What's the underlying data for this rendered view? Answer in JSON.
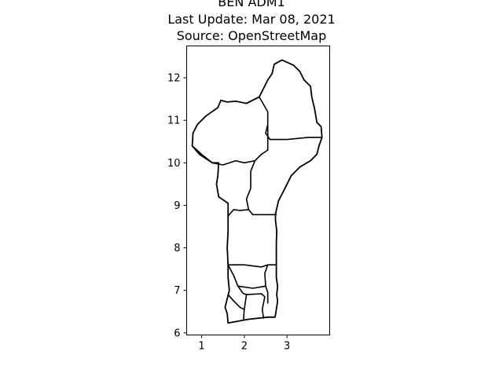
{
  "figure": {
    "title_lines": [
      "BEN ADM1",
      "Last Update: Mar 08, 2021",
      "Source: OpenStreetMap"
    ]
  },
  "chart_data": {
    "type": "map",
    "country": "BEN",
    "level": "ADM1",
    "xlim": [
      0.65,
      4.0
    ],
    "ylim": [
      5.95,
      12.75
    ],
    "xticks": [
      1,
      2,
      3
    ],
    "yticks": [
      6,
      7,
      8,
      9,
      10,
      11,
      12
    ],
    "grid": false,
    "outline": [
      [
        1.62,
        6.23
      ],
      [
        2.1,
        6.32
      ],
      [
        2.55,
        6.37
      ],
      [
        2.72,
        6.37
      ],
      [
        2.75,
        6.55
      ],
      [
        2.78,
        6.75
      ],
      [
        2.76,
        6.9
      ],
      [
        2.78,
        7.1
      ],
      [
        2.75,
        7.3
      ],
      [
        2.75,
        7.6
      ],
      [
        2.75,
        7.9
      ],
      [
        2.75,
        8.1
      ],
      [
        2.76,
        8.4
      ],
      [
        2.73,
        8.65
      ],
      [
        2.73,
        8.8
      ],
      [
        2.8,
        9.1
      ],
      [
        2.95,
        9.4
      ],
      [
        3.1,
        9.7
      ],
      [
        3.3,
        9.9
      ],
      [
        3.55,
        10.05
      ],
      [
        3.7,
        10.2
      ],
      [
        3.75,
        10.4
      ],
      [
        3.82,
        10.6
      ],
      [
        3.8,
        10.85
      ],
      [
        3.7,
        10.95
      ],
      [
        3.65,
        11.25
      ],
      [
        3.58,
        11.55
      ],
      [
        3.55,
        11.8
      ],
      [
        3.4,
        11.95
      ],
      [
        3.3,
        12.15
      ],
      [
        3.15,
        12.3
      ],
      [
        2.88,
        12.42
      ],
      [
        2.7,
        12.32
      ],
      [
        2.65,
        12.1
      ],
      [
        2.55,
        11.95
      ],
      [
        2.35,
        11.55
      ],
      [
        2.05,
        11.4
      ],
      [
        1.8,
        11.45
      ],
      [
        1.6,
        11.43
      ],
      [
        1.45,
        11.47
      ],
      [
        1.38,
        11.3
      ],
      [
        1.1,
        11.1
      ],
      [
        0.9,
        10.9
      ],
      [
        0.8,
        10.7
      ],
      [
        0.78,
        10.4
      ],
      [
        0.95,
        10.2
      ],
      [
        1.25,
        10.0
      ],
      [
        1.4,
        10.0
      ],
      [
        1.38,
        9.7
      ],
      [
        1.35,
        9.5
      ],
      [
        1.4,
        9.2
      ],
      [
        1.62,
        9.05
      ],
      [
        1.62,
        8.75
      ],
      [
        1.62,
        8.4
      ],
      [
        1.6,
        8.0
      ],
      [
        1.62,
        7.6
      ],
      [
        1.62,
        7.3
      ],
      [
        1.65,
        7.0
      ],
      [
        1.6,
        6.8
      ],
      [
        1.55,
        6.6
      ],
      [
        1.6,
        6.45
      ],
      [
        1.62,
        6.23
      ]
    ],
    "borders": [
      [
        [
          2.35,
          11.55
        ],
        [
          2.05,
          11.4
        ]
      ],
      [
        [
          2.35,
          11.55
        ],
        [
          2.55,
          11.2
        ],
        [
          2.55,
          10.9
        ],
        [
          2.5,
          10.7
        ],
        [
          2.6,
          10.55
        ],
        [
          3.0,
          10.55
        ],
        [
          3.5,
          10.6
        ],
        [
          3.82,
          10.6
        ]
      ],
      [
        [
          2.55,
          10.9
        ],
        [
          2.55,
          10.5
        ],
        [
          2.55,
          10.3
        ],
        [
          2.4,
          10.2
        ]
      ],
      [
        [
          0.78,
          10.4
        ],
        [
          1.0,
          10.2
        ],
        [
          1.25,
          10.0
        ]
      ],
      [
        [
          1.25,
          10.0
        ],
        [
          1.5,
          9.95
        ],
        [
          1.8,
          10.05
        ],
        [
          2.0,
          10.0
        ],
        [
          2.25,
          10.05
        ],
        [
          2.4,
          10.2
        ]
      ],
      [
        [
          2.25,
          10.05
        ],
        [
          2.15,
          9.8
        ],
        [
          2.15,
          9.4
        ],
        [
          2.05,
          9.15
        ],
        [
          2.1,
          8.9
        ],
        [
          2.2,
          8.78
        ],
        [
          2.75,
          8.78
        ]
      ],
      [
        [
          2.1,
          8.9
        ],
        [
          1.9,
          8.88
        ],
        [
          1.75,
          8.9
        ],
        [
          1.62,
          8.75
        ]
      ],
      [
        [
          1.62,
          7.6
        ],
        [
          2.0,
          7.6
        ],
        [
          2.4,
          7.55
        ],
        [
          2.55,
          7.6
        ],
        [
          2.75,
          7.6
        ]
      ],
      [
        [
          1.62,
          7.6
        ],
        [
          1.75,
          7.35
        ],
        [
          1.85,
          7.1
        ],
        [
          1.97,
          6.93
        ],
        [
          2.05,
          6.9
        ]
      ],
      [
        [
          2.55,
          7.6
        ],
        [
          2.48,
          7.4
        ],
        [
          2.5,
          7.1
        ],
        [
          2.55,
          6.95
        ],
        [
          2.55,
          6.7
        ]
      ],
      [
        [
          1.85,
          7.1
        ],
        [
          2.2,
          7.05
        ],
        [
          2.5,
          7.1
        ]
      ],
      [
        [
          1.62,
          6.9
        ],
        [
          1.75,
          6.75
        ],
        [
          1.9,
          6.6
        ],
        [
          2.0,
          6.55
        ]
      ],
      [
        [
          2.05,
          6.9
        ],
        [
          2.4,
          6.92
        ],
        [
          2.48,
          6.85
        ],
        [
          2.42,
          6.55
        ],
        [
          2.45,
          6.35
        ]
      ],
      [
        [
          2.05,
          6.9
        ],
        [
          2.0,
          6.55
        ],
        [
          1.98,
          6.3
        ]
      ]
    ]
  }
}
